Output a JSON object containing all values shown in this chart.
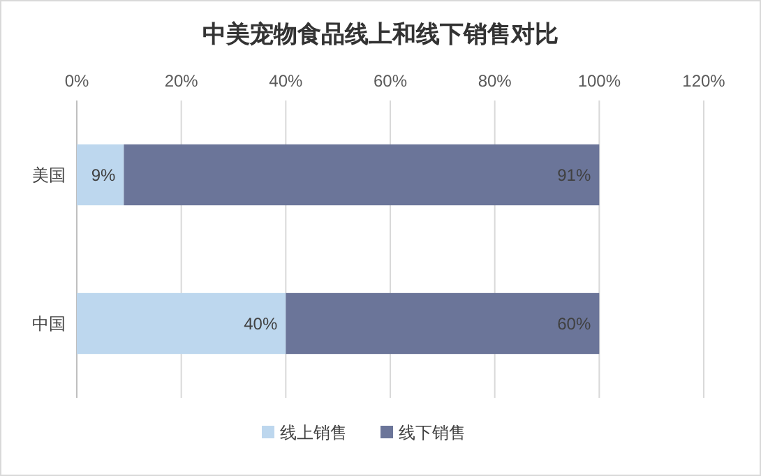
{
  "chart_data": {
    "type": "bar",
    "orientation": "horizontal",
    "stacked": true,
    "title": "中美宠物食品线上和线下销售对比",
    "categories": [
      "美国",
      "中国"
    ],
    "series": [
      {
        "name": "线上销售",
        "color": "#bdd7ee",
        "values": [
          9,
          40
        ],
        "value_labels": [
          "9%",
          "40%"
        ]
      },
      {
        "name": "线下销售",
        "color": "#6b7599",
        "values": [
          91,
          60
        ],
        "value_labels": [
          "91%",
          "60%"
        ]
      }
    ],
    "xlim": [
      0,
      120
    ],
    "xticks": [
      {
        "value": 0,
        "label": "0%"
      },
      {
        "value": 20,
        "label": "20%"
      },
      {
        "value": 40,
        "label": "40%"
      },
      {
        "value": 60,
        "label": "60%"
      },
      {
        "value": 80,
        "label": "80%"
      },
      {
        "value": 100,
        "label": "100%"
      },
      {
        "value": 120,
        "label": "120%"
      }
    ],
    "grid": "x",
    "legend": "bottom"
  }
}
